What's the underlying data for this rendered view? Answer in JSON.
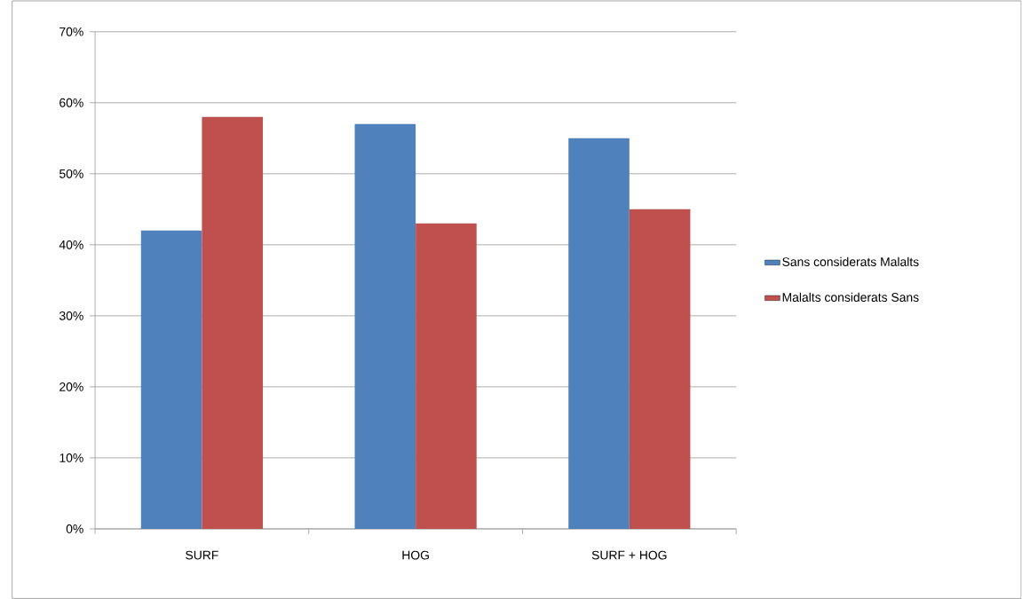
{
  "chart_data": {
    "type": "bar",
    "categories": [
      "SURF",
      "HOG",
      "SURF + HOG"
    ],
    "series": [
      {
        "name": "Sans considerats Malalts",
        "color": "#4f81bd",
        "values": [
          42,
          57,
          55
        ]
      },
      {
        "name": "Malalts considerats Sans",
        "color": "#c0504d",
        "values": [
          58,
          43,
          45
        ]
      }
    ],
    "ylim": [
      0,
      70
    ],
    "yticks": [
      {
        "value": 0,
        "label": "0%"
      },
      {
        "value": 10,
        "label": "10%"
      },
      {
        "value": 20,
        "label": "20%"
      },
      {
        "value": 30,
        "label": "30%"
      },
      {
        "value": 40,
        "label": "40%"
      },
      {
        "value": 50,
        "label": "50%"
      },
      {
        "value": 60,
        "label": "60%"
      },
      {
        "value": 70,
        "label": "70%"
      }
    ],
    "grid": "y",
    "legend": "right"
  }
}
